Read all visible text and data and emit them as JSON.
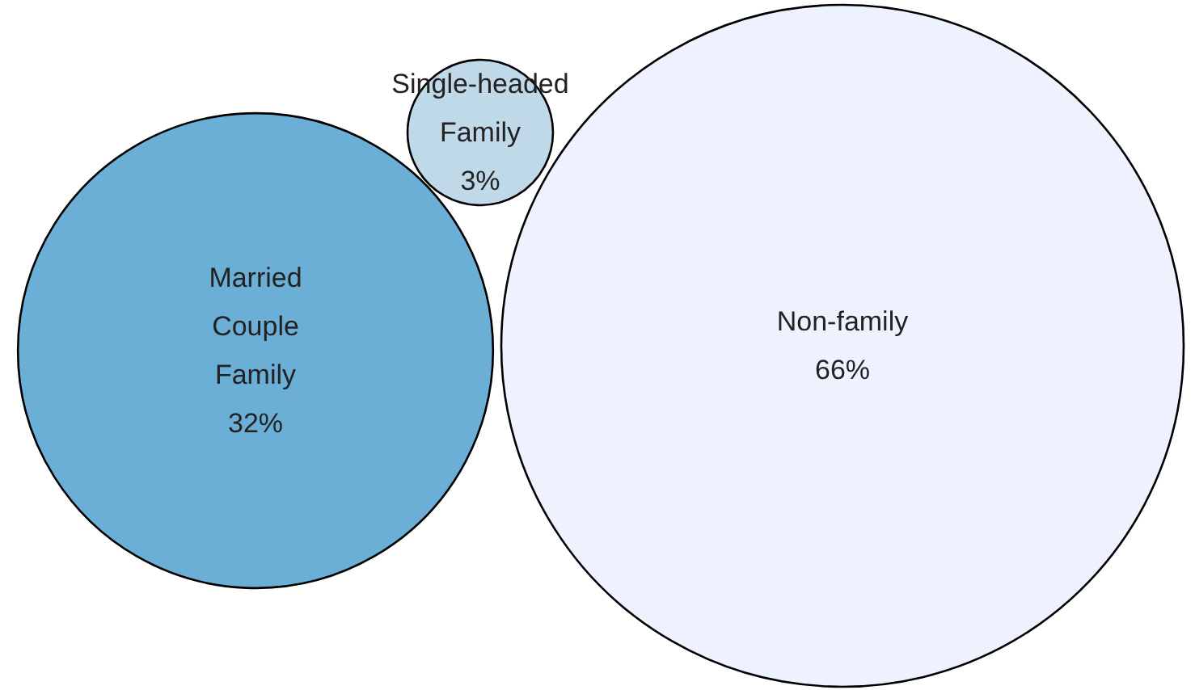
{
  "chart_data": {
    "type": "other",
    "categories": [
      "Married Couple Family",
      "Single-headed Family",
      "Non-family"
    ],
    "values": [
      32,
      3,
      66
    ],
    "value_labels": [
      "32%",
      "3%",
      "66%"
    ],
    "colors": [
      "#6baed6",
      "#c0d9e8",
      "#eef2fe"
    ]
  }
}
